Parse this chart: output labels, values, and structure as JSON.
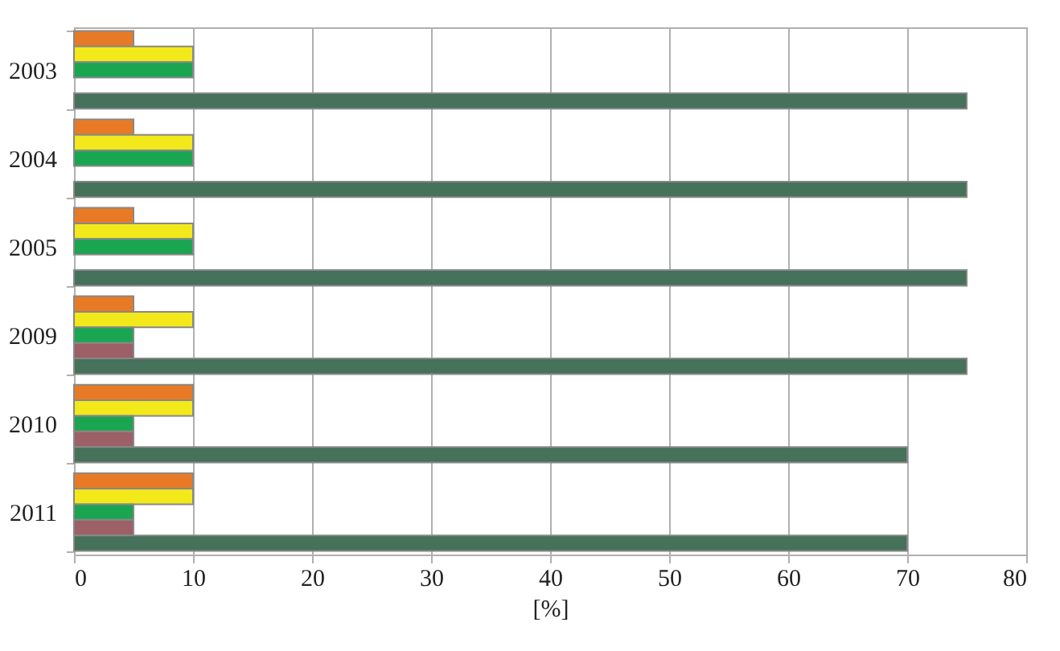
{
  "chart_data": {
    "type": "bar",
    "orientation": "horizontal",
    "xlabel": "[%]",
    "categories": [
      "2003",
      "2004",
      "2005",
      "2009",
      "2010",
      "2011"
    ],
    "series": [
      {
        "color": "#e87a25",
        "values": [
          5,
          5,
          5,
          5,
          10,
          10
        ]
      },
      {
        "color": "#f2e81a",
        "values": [
          10,
          10,
          10,
          10,
          10,
          10
        ]
      },
      {
        "color": "#1aa550",
        "values": [
          10,
          10,
          10,
          5,
          5,
          5
        ]
      },
      {
        "color": "#9c6066",
        "values": [
          null,
          null,
          null,
          5,
          5,
          5
        ]
      },
      {
        "color": "#46715a",
        "values": [
          75,
          75,
          75,
          75,
          70,
          70
        ]
      }
    ],
    "xlim": [
      0,
      80
    ],
    "xticks": [
      0,
      10,
      20,
      30,
      40,
      50,
      60,
      70,
      80
    ],
    "grid": "x",
    "legend": false
  }
}
